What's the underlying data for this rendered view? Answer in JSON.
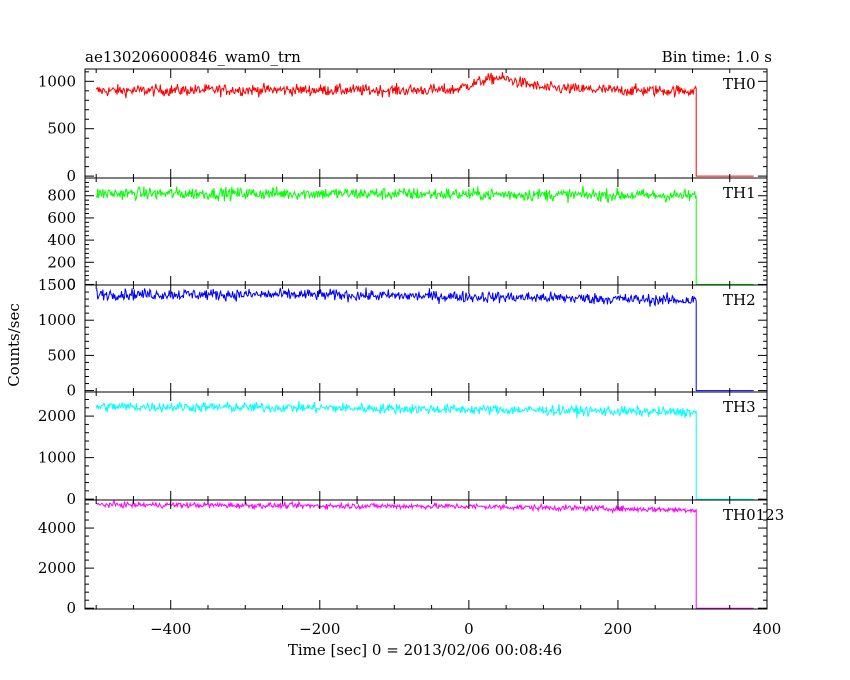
{
  "header": {
    "title": "ae130206000846_wam0_trn",
    "bin_time": "Bin time: 1.0 s"
  },
  "chart_data": {
    "type": "line",
    "xlabel": "Time [sec] 0 = 2013/02/06 00:08:46",
    "ylabel": "Counts/sec",
    "xlim": [
      -515,
      400
    ],
    "x_ticks": [
      -400,
      -200,
      0,
      200,
      400
    ],
    "x_tick_labels": [
      "−400",
      "−200",
      "0",
      "200",
      "400"
    ],
    "data_start": -500,
    "data_end": 382,
    "cutoff": 305,
    "panels": [
      {
        "name": "TH0",
        "color": "#ff0000",
        "ylim": [
          -20,
          1130
        ],
        "ticks": [
          0,
          500,
          1000
        ],
        "tick_labels": [
          "0",
          "500",
          "1000"
        ],
        "level_points": [
          [
            -500,
            900
          ],
          [
            -300,
            910
          ],
          [
            -100,
            905
          ],
          [
            -20,
            910
          ],
          [
            20,
            1010
          ],
          [
            40,
            1040
          ],
          [
            60,
            1005
          ],
          [
            100,
            930
          ],
          [
            200,
            905
          ],
          [
            305,
            900
          ]
        ],
        "noise": 30,
        "after_level": 0
      },
      {
        "name": "TH1",
        "color": "#00ff00",
        "ylim": [
          -5,
          960
        ],
        "ticks": [
          0,
          200,
          400,
          600,
          800
        ],
        "tick_labels": [
          "0",
          "200",
          "400",
          "600",
          "800"
        ],
        "level_points": [
          [
            -500,
            820
          ],
          [
            -200,
            820
          ],
          [
            100,
            810
          ],
          [
            305,
            800
          ]
        ],
        "noise": 28,
        "after_level": 0
      },
      {
        "name": "TH2",
        "color": "#0000ff",
        "ylim": [
          -20,
          1500
        ],
        "ticks": [
          0,
          500,
          1000,
          1500
        ],
        "tick_labels": [
          "0",
          "500",
          "1000",
          "1500"
        ],
        "level_points": [
          [
            -500,
            1370
          ],
          [
            -200,
            1360
          ],
          [
            100,
            1320
          ],
          [
            305,
            1280
          ]
        ],
        "noise": 40,
        "after_level": 0
      },
      {
        "name": "TH3",
        "color": "#00ffff",
        "ylim": [
          -20,
          2580
        ],
        "ticks": [
          0,
          1000,
          2000
        ],
        "tick_labels": [
          "0",
          "1000",
          "2000"
        ],
        "level_points": [
          [
            -500,
            2230
          ],
          [
            -200,
            2200
          ],
          [
            100,
            2140
          ],
          [
            305,
            2090
          ]
        ],
        "noise": 60,
        "after_level": 0
      },
      {
        "name": "TH0123",
        "color": "#ff00ff",
        "ylim": [
          -40,
          5400
        ],
        "ticks": [
          0,
          2000,
          4000
        ],
        "tick_labels": [
          "0",
          "2000",
          "4000"
        ],
        "level_points": [
          [
            -500,
            5170
          ],
          [
            -200,
            5110
          ],
          [
            0,
            5080
          ],
          [
            100,
            5020
          ],
          [
            305,
            4900
          ]
        ],
        "noise": 70,
        "after_level": 0
      }
    ]
  }
}
